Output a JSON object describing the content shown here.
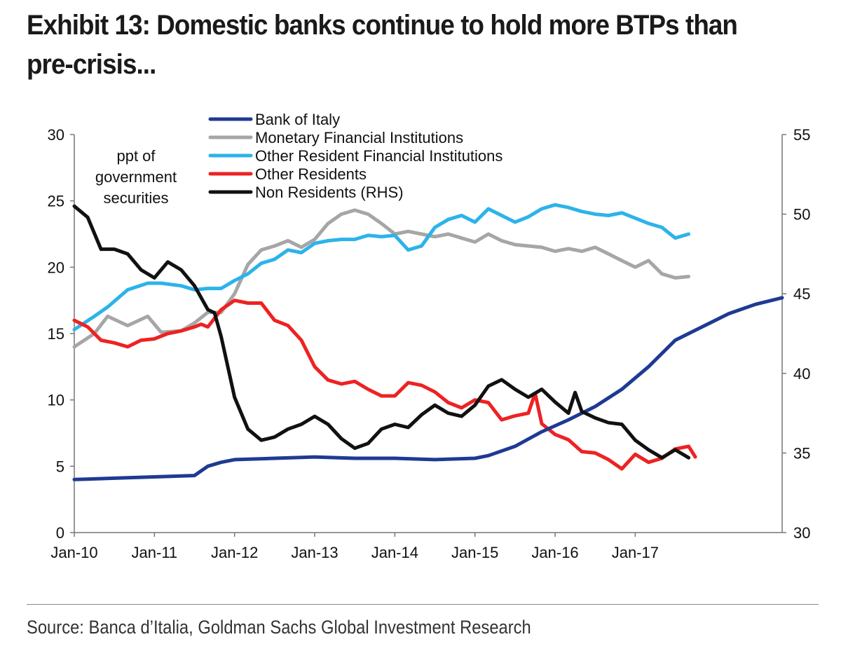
{
  "title": {
    "line1": "Exhibit 13: Domestic banks continue to hold more BTPs than",
    "line2": "pre-crisis..."
  },
  "source": "Source: Banca d’Italia, Goldman Sachs Global Investment Research",
  "chart_data": {
    "type": "line",
    "x_ticks": [
      "Jan-10",
      "Jan-11",
      "Jan-12",
      "Jan-13",
      "Jan-14",
      "Jan-15",
      "Jan-16",
      "Jan-17"
    ],
    "x_range_months": [
      0,
      93
    ],
    "y_left": {
      "min": 0,
      "max": 30,
      "ticks": [
        0,
        5,
        10,
        15,
        20,
        25,
        30
      ]
    },
    "y_right": {
      "min": 30,
      "max": 55,
      "ticks": [
        30,
        35,
        40,
        45,
        50,
        55
      ]
    },
    "annotation": [
      "ppt  of",
      "government",
      "securities"
    ],
    "series": [
      {
        "name": "Bank of Italy",
        "color": "#1f3a93",
        "axis": "left",
        "points": [
          [
            0,
            4.0
          ],
          [
            6,
            4.1
          ],
          [
            12,
            4.2
          ],
          [
            18,
            4.3
          ],
          [
            20,
            5.0
          ],
          [
            22,
            5.3
          ],
          [
            24,
            5.5
          ],
          [
            30,
            5.6
          ],
          [
            36,
            5.7
          ],
          [
            42,
            5.6
          ],
          [
            48,
            5.6
          ],
          [
            54,
            5.5
          ],
          [
            60,
            5.6
          ],
          [
            62,
            5.8
          ],
          [
            66,
            6.5
          ],
          [
            70,
            7.6
          ],
          [
            74,
            8.5
          ],
          [
            78,
            9.5
          ],
          [
            82,
            10.8
          ],
          [
            86,
            12.5
          ],
          [
            90,
            14.5
          ],
          [
            94,
            15.5
          ],
          [
            98,
            16.5
          ],
          [
            102,
            17.2
          ],
          [
            106,
            17.7
          ]
        ]
      },
      {
        "name": "Monetary Financial Institutions",
        "color": "#a6a6a6",
        "axis": "left",
        "points": [
          [
            0,
            14.0
          ],
          [
            3,
            15.0
          ],
          [
            5,
            16.3
          ],
          [
            8,
            15.6
          ],
          [
            11,
            16.3
          ],
          [
            13,
            15.1
          ],
          [
            16,
            15.2
          ],
          [
            18,
            15.8
          ],
          [
            20,
            16.6
          ],
          [
            22,
            16.6
          ],
          [
            24,
            18.0
          ],
          [
            26,
            20.2
          ],
          [
            28,
            21.3
          ],
          [
            30,
            21.6
          ],
          [
            32,
            22.0
          ],
          [
            34,
            21.5
          ],
          [
            36,
            22.1
          ],
          [
            38,
            23.3
          ],
          [
            40,
            24.0
          ],
          [
            42,
            24.3
          ],
          [
            44,
            24.0
          ],
          [
            46,
            23.3
          ],
          [
            48,
            22.5
          ],
          [
            50,
            22.7
          ],
          [
            52,
            22.5
          ],
          [
            54,
            22.3
          ],
          [
            56,
            22.5
          ],
          [
            58,
            22.2
          ],
          [
            60,
            21.9
          ],
          [
            62,
            22.5
          ],
          [
            64,
            22.0
          ],
          [
            66,
            21.7
          ],
          [
            68,
            21.6
          ],
          [
            70,
            21.5
          ],
          [
            72,
            21.2
          ],
          [
            74,
            21.4
          ],
          [
            76,
            21.2
          ],
          [
            78,
            21.5
          ],
          [
            80,
            21.0
          ],
          [
            82,
            20.5
          ],
          [
            84,
            20.0
          ],
          [
            86,
            20.5
          ],
          [
            88,
            19.5
          ],
          [
            90,
            19.2
          ],
          [
            92,
            19.3
          ]
        ]
      },
      {
        "name": "Other Resident Financial Institutions",
        "color": "#2cb3ea",
        "axis": "left",
        "points": [
          [
            0,
            15.3
          ],
          [
            3,
            16.3
          ],
          [
            5,
            17.0
          ],
          [
            8,
            18.3
          ],
          [
            11,
            18.8
          ],
          [
            13,
            18.8
          ],
          [
            16,
            18.6
          ],
          [
            18,
            18.3
          ],
          [
            20,
            18.4
          ],
          [
            22,
            18.4
          ],
          [
            24,
            19.0
          ],
          [
            26,
            19.5
          ],
          [
            28,
            20.3
          ],
          [
            30,
            20.6
          ],
          [
            32,
            21.3
          ],
          [
            34,
            21.1
          ],
          [
            36,
            21.8
          ],
          [
            38,
            22.0
          ],
          [
            40,
            22.1
          ],
          [
            42,
            22.1
          ],
          [
            44,
            22.4
          ],
          [
            46,
            22.3
          ],
          [
            48,
            22.4
          ],
          [
            50,
            21.3
          ],
          [
            52,
            21.6
          ],
          [
            54,
            23.0
          ],
          [
            56,
            23.6
          ],
          [
            58,
            23.9
          ],
          [
            60,
            23.4
          ],
          [
            62,
            24.4
          ],
          [
            64,
            23.9
          ],
          [
            66,
            23.4
          ],
          [
            68,
            23.8
          ],
          [
            70,
            24.4
          ],
          [
            72,
            24.7
          ],
          [
            74,
            24.5
          ],
          [
            76,
            24.2
          ],
          [
            78,
            24.0
          ],
          [
            80,
            23.9
          ],
          [
            82,
            24.1
          ],
          [
            84,
            23.7
          ],
          [
            86,
            23.3
          ],
          [
            88,
            23.0
          ],
          [
            90,
            22.2
          ],
          [
            92,
            22.5
          ]
        ]
      },
      {
        "name": "Other Residents",
        "color": "#ee2222",
        "axis": "left",
        "points": [
          [
            0,
            16.0
          ],
          [
            2,
            15.5
          ],
          [
            4,
            14.5
          ],
          [
            6,
            14.3
          ],
          [
            8,
            14.0
          ],
          [
            10,
            14.5
          ],
          [
            12,
            14.6
          ],
          [
            14,
            15.0
          ],
          [
            16,
            15.2
          ],
          [
            18,
            15.5
          ],
          [
            19,
            15.7
          ],
          [
            20,
            15.5
          ],
          [
            22,
            16.8
          ],
          [
            24,
            17.5
          ],
          [
            26,
            17.3
          ],
          [
            28,
            17.3
          ],
          [
            30,
            16.0
          ],
          [
            32,
            15.6
          ],
          [
            34,
            14.5
          ],
          [
            36,
            12.5
          ],
          [
            38,
            11.5
          ],
          [
            40,
            11.2
          ],
          [
            42,
            11.4
          ],
          [
            44,
            10.8
          ],
          [
            46,
            10.3
          ],
          [
            48,
            10.3
          ],
          [
            50,
            11.3
          ],
          [
            52,
            11.1
          ],
          [
            54,
            10.6
          ],
          [
            56,
            9.8
          ],
          [
            58,
            9.4
          ],
          [
            60,
            10.0
          ],
          [
            62,
            9.8
          ],
          [
            64,
            8.5
          ],
          [
            66,
            8.8
          ],
          [
            68,
            9.0
          ],
          [
            69,
            10.5
          ],
          [
            70,
            8.2
          ],
          [
            72,
            7.4
          ],
          [
            74,
            7.0
          ],
          [
            76,
            6.1
          ],
          [
            78,
            6.0
          ],
          [
            80,
            5.5
          ],
          [
            82,
            4.8
          ],
          [
            84,
            5.9
          ],
          [
            86,
            5.3
          ],
          [
            88,
            5.6
          ],
          [
            90,
            6.3
          ],
          [
            92,
            6.5
          ],
          [
            93,
            5.7
          ]
        ]
      },
      {
        "name": "Non Residents (RHS)",
        "color": "#111111",
        "axis": "right",
        "points": [
          [
            0,
            50.5
          ],
          [
            2,
            49.8
          ],
          [
            4,
            47.8
          ],
          [
            6,
            47.8
          ],
          [
            8,
            47.5
          ],
          [
            10,
            46.5
          ],
          [
            12,
            46.0
          ],
          [
            14,
            47.0
          ],
          [
            16,
            46.5
          ],
          [
            18,
            45.5
          ],
          [
            20,
            44.0
          ],
          [
            21,
            43.8
          ],
          [
            22,
            42.3
          ],
          [
            24,
            38.5
          ],
          [
            26,
            36.5
          ],
          [
            28,
            35.8
          ],
          [
            30,
            36.0
          ],
          [
            32,
            36.5
          ],
          [
            34,
            36.8
          ],
          [
            36,
            37.3
          ],
          [
            38,
            36.8
          ],
          [
            40,
            35.9
          ],
          [
            42,
            35.3
          ],
          [
            44,
            35.6
          ],
          [
            46,
            36.5
          ],
          [
            48,
            36.8
          ],
          [
            50,
            36.6
          ],
          [
            52,
            37.4
          ],
          [
            54,
            38.0
          ],
          [
            56,
            37.5
          ],
          [
            58,
            37.3
          ],
          [
            60,
            38.0
          ],
          [
            62,
            39.2
          ],
          [
            64,
            39.6
          ],
          [
            66,
            39.0
          ],
          [
            68,
            38.5
          ],
          [
            70,
            39.0
          ],
          [
            72,
            38.2
          ],
          [
            74,
            37.5
          ],
          [
            75,
            38.8
          ],
          [
            76,
            37.6
          ],
          [
            78,
            37.2
          ],
          [
            80,
            36.9
          ],
          [
            82,
            36.8
          ],
          [
            84,
            35.8
          ],
          [
            86,
            35.2
          ],
          [
            88,
            34.7
          ],
          [
            90,
            35.2
          ],
          [
            92,
            34.7
          ]
        ]
      }
    ]
  }
}
